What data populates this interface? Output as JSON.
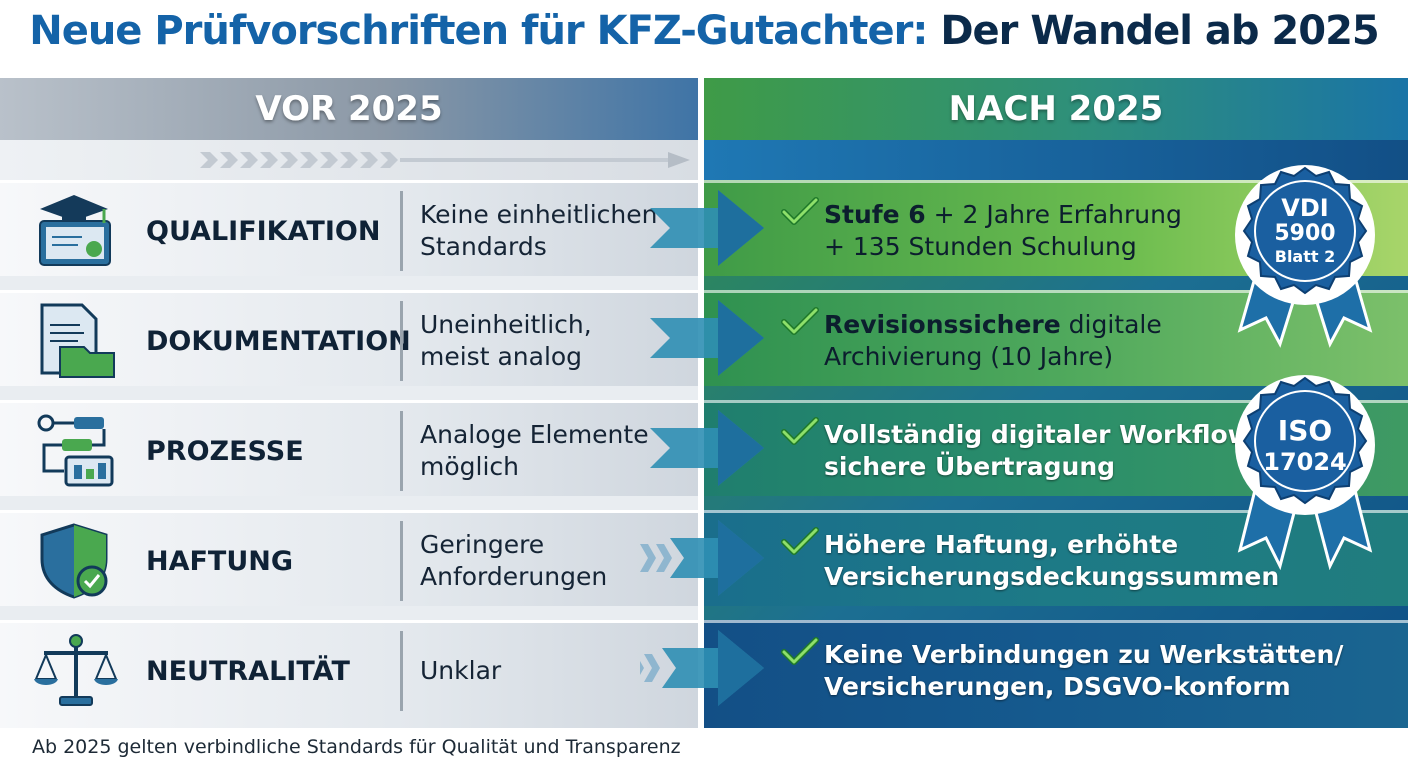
{
  "title": {
    "part1": "Neue Prüfvorschriften für KFZ-Gutachter:",
    "part2": "Der Wandel ab 2025"
  },
  "columns": {
    "before": "VOR 2025",
    "after": "NACH 2025"
  },
  "rows": [
    {
      "icon": "graduation-certificate-icon",
      "label": "QUALIFIKATION",
      "before": [
        "Keine einheitlichen",
        "Standards"
      ],
      "after_bold": "Stufe 6",
      "after": [
        "+ 2 Jahre Erfahrung",
        "+ 135 Stunden Schulung"
      ]
    },
    {
      "icon": "document-folder-icon",
      "label": "DOKUMENTATION",
      "before": [
        "Uneinheitlich,",
        "meist analog"
      ],
      "after_bold": "Revisionssichere",
      "after": [
        "digitale",
        "Archivierung (10 Jahre)"
      ]
    },
    {
      "icon": "workflow-icon",
      "label": "PROZESSE",
      "before": [
        "Analoge Elemente",
        "möglich"
      ],
      "after": [
        "Vollständig digitaler Workflow,",
        "sichere Übertragung"
      ]
    },
    {
      "icon": "shield-check-icon",
      "label": "HAFTUNG",
      "before": [
        "Geringere",
        "Anforderungen"
      ],
      "after": [
        "Höhere Haftung, erhöhte",
        "Versicherungsdeckungssummen"
      ]
    },
    {
      "icon": "scales-icon",
      "label": "NEUTRALITÄT",
      "before": [
        "Unklar"
      ],
      "after": [
        "Keine Verbindungen zu Werkstätten/",
        "Versicherungen, DSGVO-konform"
      ]
    }
  ],
  "seals": [
    {
      "lines": [
        "VDI",
        "5900",
        "Blatt 2"
      ]
    },
    {
      "lines": [
        "ISO",
        "17024"
      ]
    }
  ],
  "footer": "Ab 2025 gelten verbindliche Standards für Qualität und Transparenz",
  "colors": {
    "blue": "#1463a8",
    "green": "#3f9b47",
    "navy": "#0e4e86",
    "check": "#3fae3a"
  }
}
